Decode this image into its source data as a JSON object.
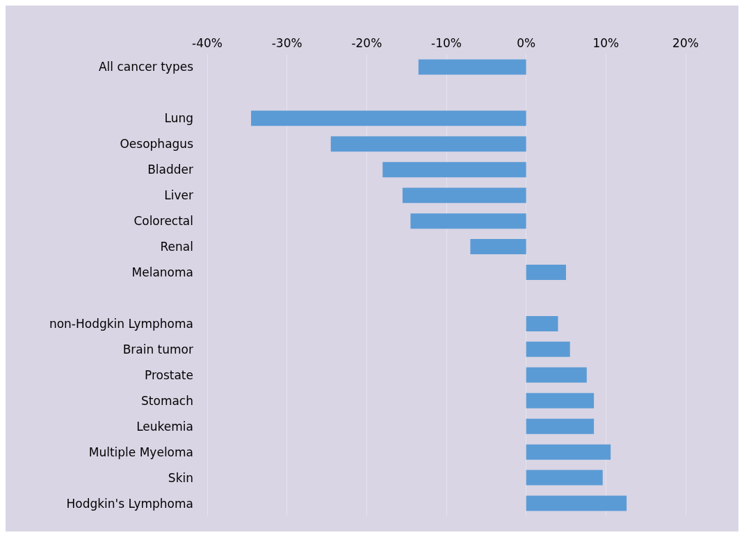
{
  "chart_data": {
    "type": "bar",
    "orientation": "horizontal",
    "color": "#5b9bd5",
    "categories": [
      "All cancer types",
      null,
      "Lung",
      "Oesophagus",
      "Bladder",
      "Liver",
      "Colorectal",
      "Renal",
      "Melanoma",
      null,
      "non-Hodgkin Lymphoma",
      "Brain tumor",
      "Prostate",
      "Stomach",
      "Leukemia",
      "Multiple Myeloma",
      "Skin",
      "Hodgkin's Lymphoma"
    ],
    "values": [
      -13.5,
      null,
      -34.5,
      -24.5,
      -18,
      -15.5,
      -14.5,
      -7,
      5,
      null,
      4,
      5.5,
      7.6,
      8.5,
      8.5,
      10.6,
      9.6,
      12.6
    ],
    "xlim": [
      -40,
      20
    ],
    "xticks": [
      {
        "value": -40,
        "label": "-40%"
      },
      {
        "value": -30,
        "label": "-30%"
      },
      {
        "value": -20,
        "label": "-20%"
      },
      {
        "value": -10,
        "label": "-10%"
      },
      {
        "value": 0,
        "label": "0%"
      },
      {
        "value": 10,
        "label": "10%"
      },
      {
        "value": 20,
        "label": "20%"
      }
    ],
    "grid": "x"
  }
}
